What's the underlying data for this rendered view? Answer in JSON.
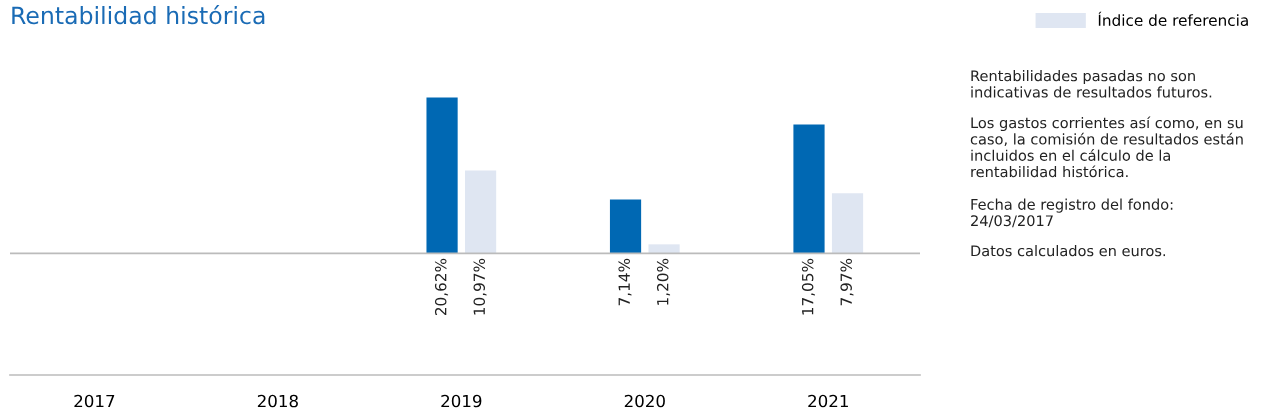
{
  "chart_data": {
    "type": "bar",
    "title": "Rentabilidad histórica",
    "categories": [
      "2017",
      "2018",
      "2019",
      "2020",
      "2021"
    ],
    "series": [
      {
        "color": "#0068b3",
        "values": [
          null,
          null,
          20.62,
          7.14,
          17.05
        ],
        "value_labels": [
          null,
          null,
          "20,62%",
          "7,14%",
          "17,05%"
        ]
      },
      {
        "name": "Índice de referencia",
        "color": "#dfe6f2",
        "values": [
          null,
          null,
          10.97,
          1.2,
          7.97
        ],
        "value_labels": [
          null,
          null,
          "10,97%",
          "1,20%",
          "7,97%"
        ]
      }
    ],
    "tick_labels": "x",
    "grid": false,
    "legend": "top right",
    "annotations": [
      "Rentabilidades pasadas no son indicativas de resultados futuros.",
      "Los gastos corrientes así como, en su caso, la comisión de resultados están incluidos en el cálculo de la rentabilidad histórica.",
      "Fecha de registro del fondo: 24/03/2017",
      "Datos calculados en euros."
    ]
  }
}
